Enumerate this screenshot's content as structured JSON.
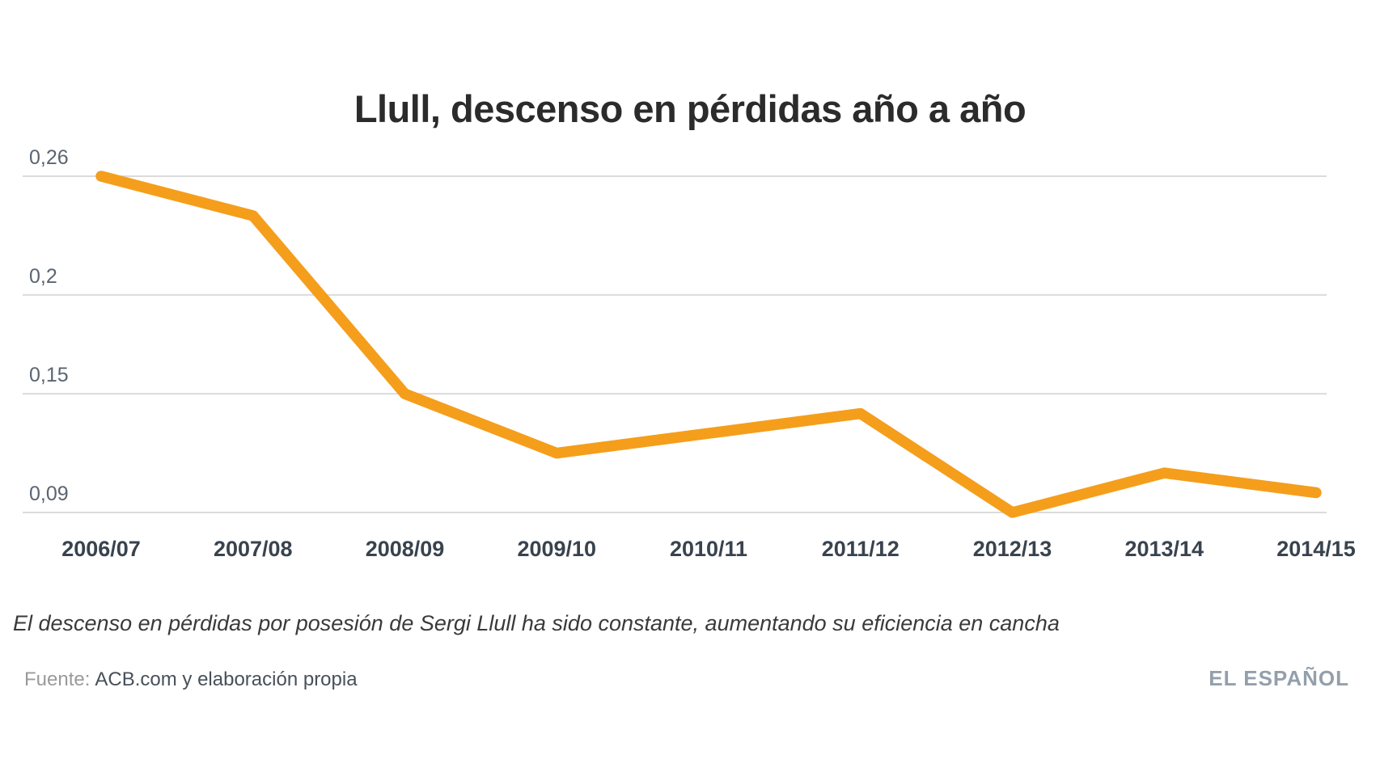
{
  "header": {
    "title": "Llull, descenso en pérdidas año a año"
  },
  "chart_data": {
    "type": "line",
    "title": "Llull, descenso en pérdidas año a año",
    "xlabel": "",
    "ylabel": "",
    "categories": [
      "2006/07",
      "2007/08",
      "2008/09",
      "2009/10",
      "2010/11",
      "2011/12",
      "2012/13",
      "2013/14",
      "2014/15"
    ],
    "series": [
      {
        "name": "Pérdidas por posesión",
        "values": [
          0.26,
          0.24,
          0.15,
          0.12,
          0.13,
          0.14,
          0.09,
          0.11,
          0.1
        ]
      }
    ],
    "yticks": [
      {
        "label": "0,26",
        "value": 0.26
      },
      {
        "label": "0,2",
        "value": 0.2
      },
      {
        "label": "0,15",
        "value": 0.15
      },
      {
        "label": "0,09",
        "value": 0.09
      }
    ],
    "ylim": [
      0.09,
      0.26
    ],
    "grid": true,
    "legend": false,
    "decimal_separator": ","
  },
  "footer": {
    "caption": "El descenso en pérdidas por posesión de Sergi Llull ha sido constante, aumentando su eficiencia en cancha",
    "source_label": "Fuente:",
    "source_value": "ACB.com y elaboración propia",
    "brand": "EL ESPAÑOL"
  },
  "colors": {
    "line": "#F59E1B",
    "grid": "#DBDBDB",
    "title": "#2B2B2B",
    "y_label": "#5A6570",
    "x_label": "#39434E",
    "caption": "#3A3A3A",
    "source_label": "#9A9A9A",
    "source_value": "#47505A",
    "brand": "#93A0AB"
  }
}
